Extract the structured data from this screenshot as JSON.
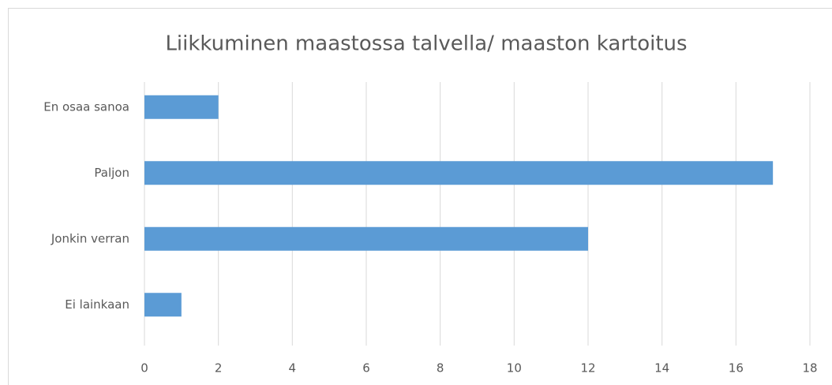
{
  "chart_data": {
    "type": "bar",
    "orientation": "horizontal",
    "title": "Liikkuminen maastossa talvella/ maaston kartoitus",
    "categories": [
      "En osaa sanoa",
      "Paljon",
      "Jonkin verran",
      "Ei lainkaan"
    ],
    "values": [
      2,
      17,
      12,
      1
    ],
    "color": "#5b9bd5",
    "xlim": [
      0,
      18
    ],
    "xticks": [
      0,
      2,
      4,
      6,
      8,
      10,
      12,
      14,
      16,
      18
    ],
    "grid": true
  }
}
